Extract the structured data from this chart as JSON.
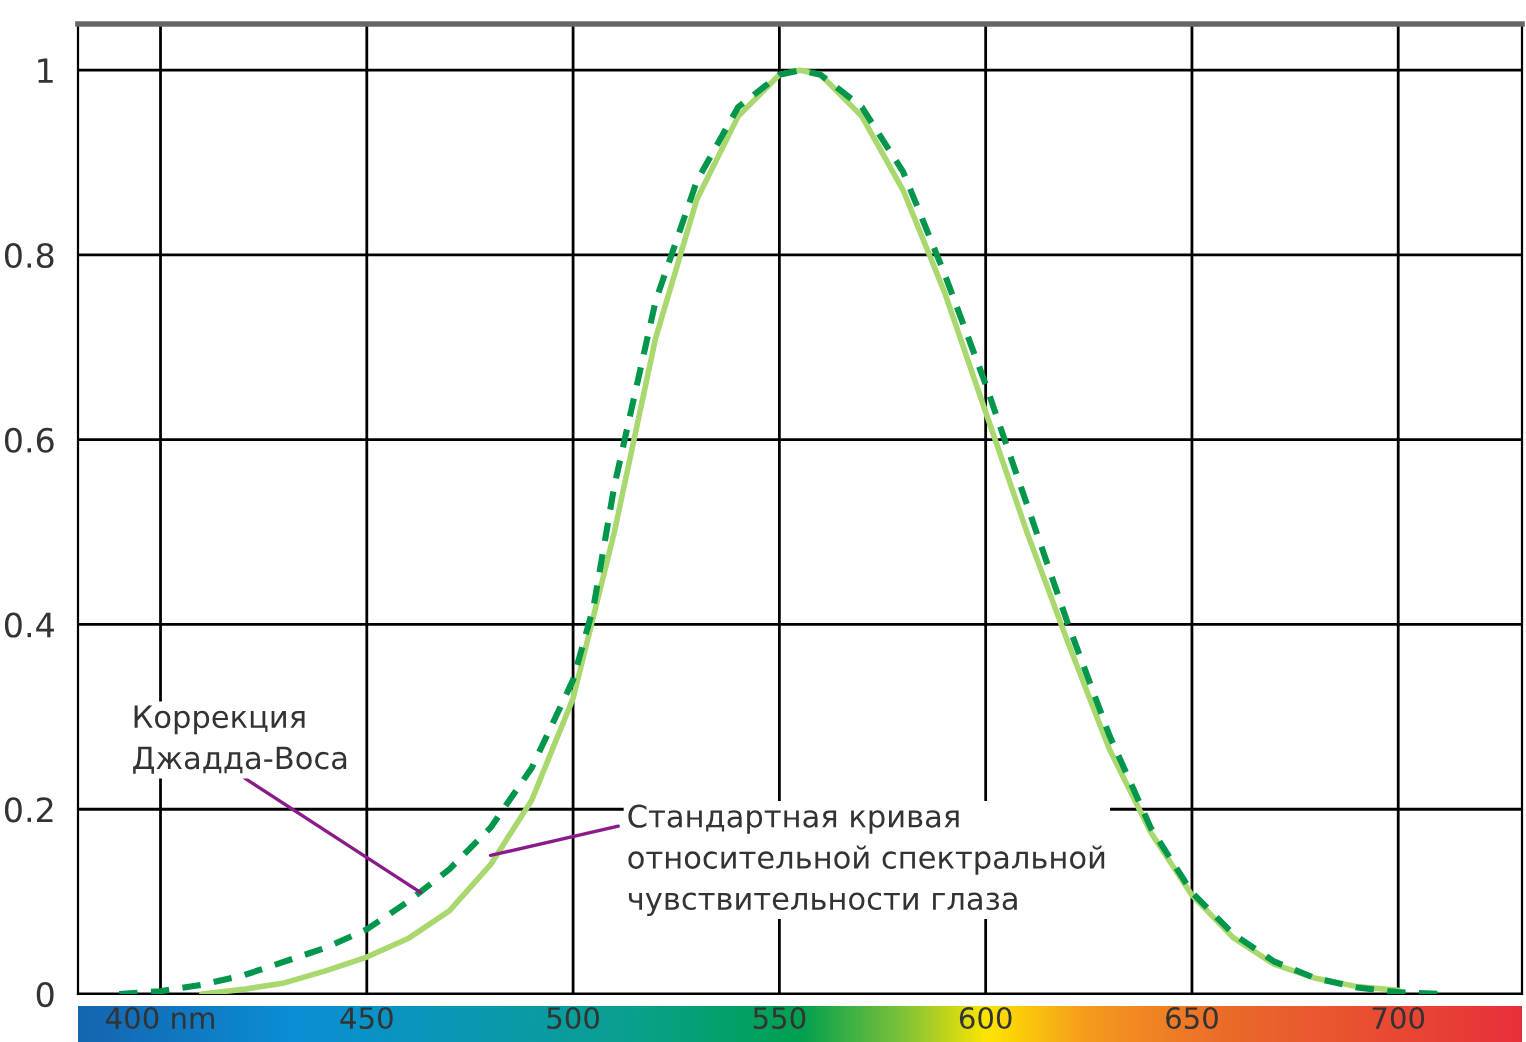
{
  "chart_data": {
    "type": "line",
    "xlim": [
      380,
      730
    ],
    "ylim": [
      0,
      1.05
    ],
    "xticks": [
      {
        "value": 400,
        "label": "400 nm"
      },
      450,
      500,
      550,
      600,
      650,
      700
    ],
    "yticks": [
      0,
      0.2,
      0.4,
      0.6,
      0.8,
      1
    ],
    "grid": true,
    "series": [
      {
        "color": "#a8d86e",
        "line_style": "solid",
        "x": [
          410,
          420,
          430,
          440,
          450,
          460,
          470,
          480,
          490,
          500,
          510,
          520,
          530,
          540,
          550,
          555,
          560,
          570,
          580,
          590,
          600,
          610,
          620,
          630,
          640,
          650,
          660,
          670,
          680,
          690,
          700
        ],
        "values": [
          0.0,
          0.005,
          0.012,
          0.025,
          0.04,
          0.06,
          0.09,
          0.14,
          0.21,
          0.32,
          0.5,
          0.71,
          0.86,
          0.95,
          0.995,
          1.0,
          0.995,
          0.95,
          0.87,
          0.76,
          0.63,
          0.5,
          0.38,
          0.265,
          0.175,
          0.107,
          0.061,
          0.032,
          0.017,
          0.008,
          0.004
        ]
      },
      {
        "color": "#00964b",
        "line_style": "dashed",
        "x": [
          390,
          400,
          410,
          420,
          430,
          440,
          450,
          460,
          470,
          480,
          490,
          500,
          505,
          510,
          520,
          530,
          540,
          550,
          555,
          560,
          570,
          580,
          590,
          600,
          610,
          620,
          630,
          640,
          650,
          660,
          670,
          680,
          690,
          700,
          710
        ],
        "values": [
          0.0,
          0.003,
          0.01,
          0.02,
          0.035,
          0.05,
          0.07,
          0.1,
          0.135,
          0.18,
          0.245,
          0.34,
          0.42,
          0.55,
          0.75,
          0.88,
          0.96,
          0.995,
          1.0,
          0.995,
          0.96,
          0.89,
          0.78,
          0.66,
          0.53,
          0.4,
          0.28,
          0.18,
          0.11,
          0.065,
          0.035,
          0.017,
          0.007,
          0.002,
          0.0
        ]
      }
    ],
    "annotations": [
      {
        "text": "Коррекция\nДжадда-Воса",
        "x": 463,
        "y": 0.11
      },
      {
        "text": "Стандартная кривая\nотносительной спектральной\nчувствительности глаза",
        "x": 480,
        "y": 0.15
      }
    ]
  }
}
